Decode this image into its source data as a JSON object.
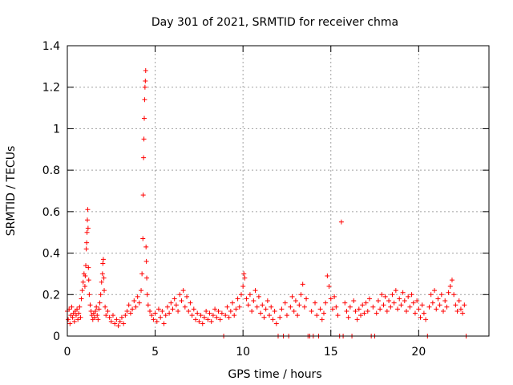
{
  "chart_data": {
    "type": "scatter",
    "title": "Day 301 of 2021, SRMTID for receiver chma",
    "xlabel": "GPS time / hours",
    "ylabel": "SRMTID / TECUs",
    "xlim": [
      0,
      24
    ],
    "ylim": [
      0,
      1.4
    ],
    "xticks": [
      0,
      5,
      10,
      15,
      20
    ],
    "xtick_labels": [
      "0",
      "5",
      "10",
      "15",
      "20"
    ],
    "yticks": [
      0,
      0.2,
      0.4,
      0.6,
      0.8,
      1,
      1.2,
      1.4
    ],
    "ytick_labels": [
      "0",
      "0.2",
      "0.4",
      "0.6",
      "0.8",
      "1",
      "1.2",
      "1.4"
    ],
    "grid": true,
    "marker": "plus",
    "series": [
      {
        "name": "SRMTID",
        "color": "#ff0000",
        "points": [
          [
            0.0,
            0.12
          ],
          [
            0.05,
            0.08
          ],
          [
            0.1,
            0.13
          ],
          [
            0.15,
            0.06
          ],
          [
            0.2,
            0.1
          ],
          [
            0.25,
            0.14
          ],
          [
            0.3,
            0.09
          ],
          [
            0.35,
            0.11
          ],
          [
            0.4,
            0.07
          ],
          [
            0.45,
            0.12
          ],
          [
            0.5,
            0.1
          ],
          [
            0.55,
            0.13
          ],
          [
            0.6,
            0.08
          ],
          [
            0.65,
            0.11
          ],
          [
            0.7,
            0.14
          ],
          [
            0.75,
            0.09
          ],
          [
            0.8,
            0.18
          ],
          [
            0.85,
            0.22
          ],
          [
            0.9,
            0.26
          ],
          [
            0.95,
            0.3
          ],
          [
            1.0,
            0.24
          ],
          [
            1.02,
            0.29
          ],
          [
            1.05,
            0.34
          ],
          [
            1.08,
            0.42
          ],
          [
            1.1,
            0.45
          ],
          [
            1.12,
            0.5
          ],
          [
            1.14,
            0.56
          ],
          [
            1.16,
            0.61
          ],
          [
            1.18,
            0.52
          ],
          [
            1.2,
            0.33
          ],
          [
            1.22,
            0.27
          ],
          [
            1.25,
            0.2
          ],
          [
            1.3,
            0.15
          ],
          [
            1.35,
            0.12
          ],
          [
            1.4,
            0.1
          ],
          [
            1.45,
            0.08
          ],
          [
            1.5,
            0.11
          ],
          [
            1.55,
            0.09
          ],
          [
            1.6,
            0.12
          ],
          [
            1.65,
            0.14
          ],
          [
            1.7,
            0.1
          ],
          [
            1.75,
            0.08
          ],
          [
            1.8,
            0.13
          ],
          [
            1.85,
            0.16
          ],
          [
            1.9,
            0.2
          ],
          [
            1.95,
            0.26
          ],
          [
            2.0,
            0.3
          ],
          [
            2.02,
            0.35
          ],
          [
            2.05,
            0.37
          ],
          [
            2.08,
            0.28
          ],
          [
            2.1,
            0.22
          ],
          [
            2.15,
            0.14
          ],
          [
            2.2,
            0.1
          ],
          [
            2.3,
            0.12
          ],
          [
            2.4,
            0.09
          ],
          [
            2.5,
            0.07
          ],
          [
            2.6,
            0.1
          ],
          [
            2.7,
            0.06
          ],
          [
            2.8,
            0.08
          ],
          [
            2.9,
            0.05
          ],
          [
            3.0,
            0.07
          ],
          [
            3.1,
            0.09
          ],
          [
            3.2,
            0.06
          ],
          [
            3.3,
            0.1
          ],
          [
            3.4,
            0.12
          ],
          [
            3.5,
            0.15
          ],
          [
            3.6,
            0.11
          ],
          [
            3.7,
            0.13
          ],
          [
            3.8,
            0.17
          ],
          [
            3.9,
            0.14
          ],
          [
            4.0,
            0.19
          ],
          [
            4.1,
            0.16
          ],
          [
            4.2,
            0.22
          ],
          [
            4.25,
            0.3
          ],
          [
            4.3,
            0.47
          ],
          [
            4.32,
            0.68
          ],
          [
            4.34,
            0.86
          ],
          [
            4.36,
            0.95
          ],
          [
            4.38,
            1.05
          ],
          [
            4.4,
            1.14
          ],
          [
            4.42,
            1.2
          ],
          [
            4.44,
            1.23
          ],
          [
            4.46,
            1.28
          ],
          [
            4.48,
            0.43
          ],
          [
            4.5,
            0.36
          ],
          [
            4.52,
            0.28
          ],
          [
            4.55,
            0.2
          ],
          [
            4.6,
            0.15
          ],
          [
            4.7,
            0.12
          ],
          [
            4.8,
            0.1
          ],
          [
            4.9,
            0.08
          ],
          [
            5.0,
            0.11
          ],
          [
            5.1,
            0.07
          ],
          [
            5.2,
            0.13
          ],
          [
            5.3,
            0.09
          ],
          [
            5.4,
            0.12
          ],
          [
            5.5,
            0.06
          ],
          [
            5.6,
            0.1
          ],
          [
            5.7,
            0.14
          ],
          [
            5.8,
            0.11
          ],
          [
            5.9,
            0.16
          ],
          [
            6.0,
            0.13
          ],
          [
            6.1,
            0.18
          ],
          [
            6.2,
            0.15
          ],
          [
            6.3,
            0.12
          ],
          [
            6.4,
            0.2
          ],
          [
            6.5,
            0.17
          ],
          [
            6.6,
            0.22
          ],
          [
            6.7,
            0.14
          ],
          [
            6.8,
            0.19
          ],
          [
            6.9,
            0.12
          ],
          [
            7.0,
            0.16
          ],
          [
            7.1,
            0.1
          ],
          [
            7.2,
            0.13
          ],
          [
            7.3,
            0.08
          ],
          [
            7.4,
            0.11
          ],
          [
            7.5,
            0.07
          ],
          [
            7.6,
            0.1
          ],
          [
            7.7,
            0.06
          ],
          [
            7.8,
            0.09
          ],
          [
            7.9,
            0.12
          ],
          [
            8.0,
            0.08
          ],
          [
            8.1,
            0.11
          ],
          [
            8.2,
            0.07
          ],
          [
            8.3,
            0.1
          ],
          [
            8.4,
            0.13
          ],
          [
            8.5,
            0.09
          ],
          [
            8.6,
            0.12
          ],
          [
            8.7,
            0.08
          ],
          [
            8.8,
            0.11
          ],
          [
            8.9,
            0.0
          ],
          [
            9.0,
            0.1
          ],
          [
            9.1,
            0.14
          ],
          [
            9.2,
            0.09
          ],
          [
            9.3,
            0.12
          ],
          [
            9.4,
            0.16
          ],
          [
            9.5,
            0.1
          ],
          [
            9.6,
            0.13
          ],
          [
            9.7,
            0.18
          ],
          [
            9.8,
            0.14
          ],
          [
            9.9,
            0.2
          ],
          [
            10.0,
            0.24
          ],
          [
            10.05,
            0.3
          ],
          [
            10.1,
            0.28
          ],
          [
            10.2,
            0.18
          ],
          [
            10.3,
            0.15
          ],
          [
            10.4,
            0.2
          ],
          [
            10.5,
            0.12
          ],
          [
            10.6,
            0.17
          ],
          [
            10.7,
            0.22
          ],
          [
            10.8,
            0.14
          ],
          [
            10.9,
            0.19
          ],
          [
            11.0,
            0.11
          ],
          [
            11.1,
            0.15
          ],
          [
            11.2,
            0.09
          ],
          [
            11.3,
            0.13
          ],
          [
            11.4,
            0.17
          ],
          [
            11.5,
            0.1
          ],
          [
            11.6,
            0.14
          ],
          [
            11.7,
            0.08
          ],
          [
            11.8,
            0.12
          ],
          [
            11.9,
            0.06
          ],
          [
            12.0,
            0.0
          ],
          [
            12.1,
            0.09
          ],
          [
            12.2,
            0.13
          ],
          [
            12.3,
            0.0
          ],
          [
            12.4,
            0.16
          ],
          [
            12.5,
            0.1
          ],
          [
            12.6,
            0.0
          ],
          [
            12.7,
            0.14
          ],
          [
            12.8,
            0.19
          ],
          [
            12.9,
            0.12
          ],
          [
            13.0,
            0.17
          ],
          [
            13.1,
            0.1
          ],
          [
            13.2,
            0.15
          ],
          [
            13.3,
            0.2
          ],
          [
            13.4,
            0.25
          ],
          [
            13.5,
            0.14
          ],
          [
            13.6,
            0.18
          ],
          [
            13.7,
            0.0
          ],
          [
            13.8,
            0.0
          ],
          [
            13.9,
            0.12
          ],
          [
            14.0,
            0.0
          ],
          [
            14.1,
            0.16
          ],
          [
            14.2,
            0.1
          ],
          [
            14.3,
            0.0
          ],
          [
            14.4,
            0.13
          ],
          [
            14.5,
            0.08
          ],
          [
            14.6,
            0.11
          ],
          [
            14.7,
            0.16
          ],
          [
            14.8,
            0.29
          ],
          [
            14.9,
            0.24
          ],
          [
            15.0,
            0.18
          ],
          [
            15.1,
            0.13
          ],
          [
            15.2,
            0.19
          ],
          [
            15.3,
            0.14
          ],
          [
            15.4,
            0.1
          ],
          [
            15.5,
            0.0
          ],
          [
            15.6,
            0.55
          ],
          [
            15.7,
            0.0
          ],
          [
            15.8,
            0.16
          ],
          [
            15.9,
            0.12
          ],
          [
            16.0,
            0.09
          ],
          [
            16.1,
            0.14
          ],
          [
            16.2,
            0.0
          ],
          [
            16.3,
            0.17
          ],
          [
            16.4,
            0.12
          ],
          [
            16.5,
            0.08
          ],
          [
            16.6,
            0.13
          ],
          [
            16.7,
            0.1
          ],
          [
            16.8,
            0.15
          ],
          [
            16.9,
            0.11
          ],
          [
            17.0,
            0.16
          ],
          [
            17.1,
            0.12
          ],
          [
            17.2,
            0.18
          ],
          [
            17.3,
            0.0
          ],
          [
            17.4,
            0.14
          ],
          [
            17.5,
            0.0
          ],
          [
            17.6,
            0.11
          ],
          [
            17.7,
            0.17
          ],
          [
            17.8,
            0.13
          ],
          [
            17.9,
            0.2
          ],
          [
            18.0,
            0.15
          ],
          [
            18.1,
            0.19
          ],
          [
            18.2,
            0.12
          ],
          [
            18.3,
            0.17
          ],
          [
            18.4,
            0.14
          ],
          [
            18.5,
            0.2
          ],
          [
            18.6,
            0.16
          ],
          [
            18.7,
            0.22
          ],
          [
            18.8,
            0.13
          ],
          [
            18.9,
            0.18
          ],
          [
            19.0,
            0.15
          ],
          [
            19.1,
            0.21
          ],
          [
            19.2,
            0.17
          ],
          [
            19.3,
            0.12
          ],
          [
            19.4,
            0.19
          ],
          [
            19.5,
            0.14
          ],
          [
            19.6,
            0.2
          ],
          [
            19.7,
            0.16
          ],
          [
            19.8,
            0.11
          ],
          [
            19.9,
            0.17
          ],
          [
            20.0,
            0.13
          ],
          [
            20.1,
            0.09
          ],
          [
            20.2,
            0.15
          ],
          [
            20.3,
            0.11
          ],
          [
            20.4,
            0.08
          ],
          [
            20.5,
            0.0
          ],
          [
            20.6,
            0.14
          ],
          [
            20.7,
            0.2
          ],
          [
            20.8,
            0.16
          ],
          [
            20.9,
            0.22
          ],
          [
            21.0,
            0.13
          ],
          [
            21.1,
            0.18
          ],
          [
            21.2,
            0.15
          ],
          [
            21.3,
            0.2
          ],
          [
            21.4,
            0.12
          ],
          [
            21.5,
            0.17
          ],
          [
            21.6,
            0.14
          ],
          [
            21.7,
            0.21
          ],
          [
            21.8,
            0.24
          ],
          [
            21.9,
            0.27
          ],
          [
            22.0,
            0.2
          ],
          [
            22.1,
            0.15
          ],
          [
            22.2,
            0.12
          ],
          [
            22.3,
            0.17
          ],
          [
            22.4,
            0.13
          ],
          [
            22.5,
            0.11
          ],
          [
            22.6,
            0.15
          ],
          [
            22.7,
            0.0
          ]
        ]
      }
    ]
  }
}
